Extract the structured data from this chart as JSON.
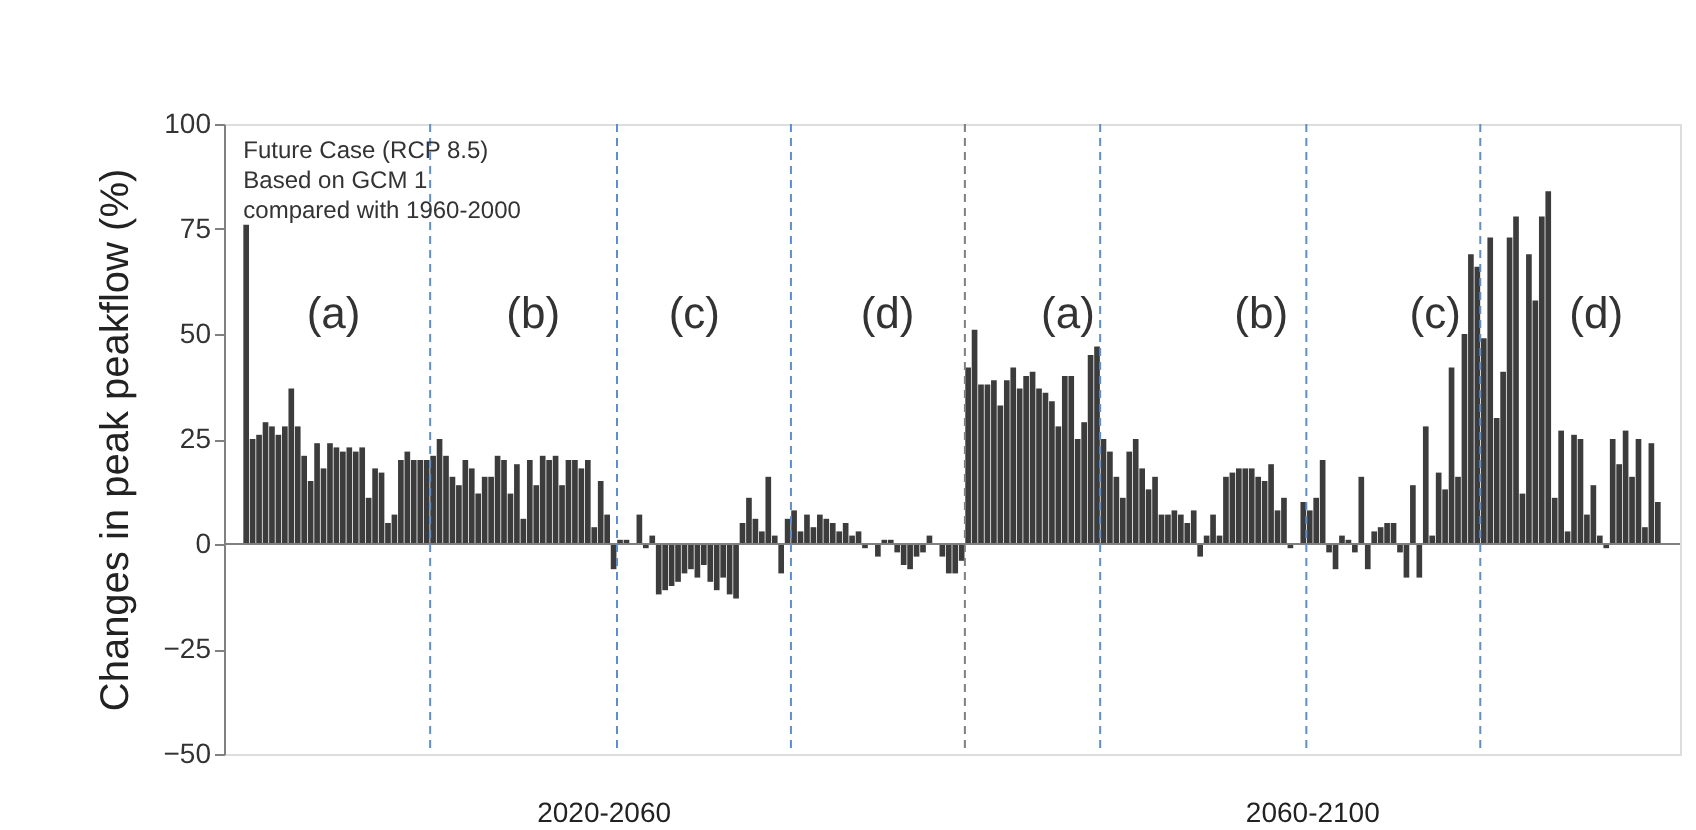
{
  "chart_data": {
    "type": "bar",
    "ylabel": "Changes in peak peakflow (%)",
    "color": "#3c3c3c",
    "categories": [
      null,
      null,
      null,
      null,
      null,
      null,
      null,
      null,
      null,
      null,
      null,
      null,
      null,
      null,
      null,
      null,
      null,
      null,
      null,
      null,
      null,
      null,
      null,
      null,
      null,
      null,
      null,
      null,
      null,
      null,
      null,
      null,
      null,
      null,
      null,
      null,
      null,
      null,
      null,
      null,
      null,
      null,
      null,
      null,
      null,
      null,
      null,
      null,
      null,
      null,
      null,
      null,
      null,
      null,
      null,
      null,
      null,
      null,
      null,
      null,
      null,
      null,
      null,
      null,
      null,
      null,
      null,
      null,
      null,
      null,
      null,
      null,
      null,
      null,
      null,
      null,
      null,
      null,
      null,
      null,
      null,
      null,
      null,
      null,
      null,
      null,
      null,
      null,
      null,
      null,
      null,
      null,
      null,
      null,
      null,
      null,
      null,
      null,
      null,
      null,
      null,
      null,
      null,
      null,
      null,
      null,
      null,
      null,
      null,
      null,
      null,
      null,
      null,
      null,
      null,
      null,
      null,
      null,
      null,
      null,
      null,
      null,
      null,
      null,
      null,
      null,
      null,
      null,
      null,
      null,
      null,
      null,
      null,
      null,
      null,
      null,
      null,
      null,
      null,
      null,
      null,
      null,
      null,
      null,
      null,
      null,
      null,
      null,
      null,
      null,
      null,
      null,
      null,
      null,
      null,
      null,
      null,
      null,
      null,
      null,
      null,
      null,
      null,
      null,
      null,
      null,
      null,
      null,
      null,
      null,
      null,
      null,
      null,
      null,
      null,
      null,
      null,
      null,
      null,
      null,
      null,
      null,
      null,
      null,
      null,
      null,
      null,
      null,
      null,
      null,
      null,
      null,
      null,
      null,
      null,
      null,
      null,
      null,
      null,
      null,
      null,
      null,
      null,
      null,
      null,
      null,
      null,
      null,
      null,
      null,
      null,
      null,
      null,
      null,
      null,
      null,
      null,
      null,
      null,
      null,
      null,
      null,
      null,
      null,
      null,
      null
    ],
    "values": [
      null,
      null,
      null,
      76,
      25,
      26,
      29,
      28,
      26,
      28,
      37,
      28,
      21,
      15,
      24,
      18,
      24,
      23,
      22,
      23,
      22,
      23,
      11,
      18,
      17,
      5,
      7,
      20,
      22,
      20,
      20,
      20,
      21,
      25,
      21,
      16,
      14,
      20,
      18,
      12,
      16,
      16,
      21,
      20,
      12,
      19,
      6,
      20,
      14,
      21,
      20,
      21,
      14,
      20,
      20,
      18,
      20,
      4,
      15,
      7,
      -6,
      1,
      1,
      0,
      7,
      -1,
      2,
      -12,
      -11,
      -10,
      -9,
      -7,
      -6,
      -8,
      -5,
      -9,
      -11,
      -8,
      -12,
      -13,
      5,
      11,
      6,
      3,
      16,
      2,
      -7,
      6,
      8,
      3,
      7,
      4,
      7,
      6,
      5,
      3,
      5,
      2,
      3,
      -1,
      0,
      -3,
      1,
      1,
      -2,
      -5,
      -6,
      -3,
      -2,
      2,
      0,
      -3,
      -7,
      -7,
      -4,
      42,
      51,
      38,
      38,
      39,
      33,
      39,
      42,
      37,
      40,
      41,
      37,
      36,
      34,
      28,
      40,
      40,
      25,
      29,
      45,
      47,
      25,
      22,
      16,
      11,
      22,
      25,
      18,
      13,
      16,
      7,
      7,
      8,
      7,
      5,
      8,
      -3,
      2,
      7,
      2,
      16,
      17,
      18,
      18,
      18,
      16,
      15,
      19,
      8,
      11,
      -1,
      0,
      10,
      8,
      11,
      20,
      -2,
      -6,
      2,
      1,
      -2,
      16,
      -6,
      3,
      4,
      5,
      5,
      -2,
      -8,
      14,
      -8,
      28,
      2,
      17,
      13,
      42,
      16,
      50,
      69,
      66,
      49,
      73,
      30,
      41,
      73,
      78,
      12,
      69,
      58,
      78,
      84,
      11,
      27,
      3,
      26,
      25,
      7,
      14,
      2,
      -1,
      25,
      19,
      27,
      16,
      25,
      4,
      24,
      10,
      null,
      null,
      null
    ],
    "ylim": [
      -50,
      100
    ],
    "yticks": [
      -50,
      -25,
      0,
      25,
      50,
      75,
      100
    ],
    "tick_labels": "y",
    "grid": false,
    "ref_lines": [
      {
        "axis": "y",
        "value": 0,
        "color": "#808080",
        "line_style": "solid"
      }
    ],
    "annotations": [
      "Future Case (RCP 8.5)\nBased on GCM 1\ncompared with 1960-2000",
      "(a)",
      "(b)",
      "(c)",
      "(d)",
      "(a)",
      "(b)",
      "(c)",
      "(d)",
      "2020-2060",
      "2060-2100"
    ]
  }
}
